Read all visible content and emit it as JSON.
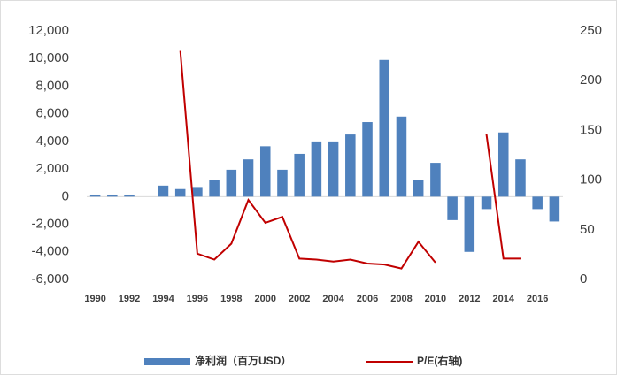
{
  "chart_data": {
    "type": "bar",
    "categories": [
      "1990",
      null,
      "1992",
      null,
      "1994",
      null,
      "1996",
      null,
      "1998",
      null,
      "2000",
      null,
      "2002",
      null,
      "2004",
      null,
      "2006",
      null,
      "2008",
      null,
      "2010",
      null,
      "2012",
      null,
      "2014",
      null,
      "2016",
      null
    ],
    "series": [
      {
        "name": "净利润（百万USD）",
        "type": "bar",
        "color": "#4f81bd",
        "values": [
          150,
          150,
          150,
          null,
          800,
          550,
          700,
          1200,
          1950,
          2700,
          3650,
          1950,
          3100,
          4000,
          4000,
          4500,
          5400,
          9900,
          5800,
          1200,
          2450,
          -1700,
          -4000,
          -900,
          4650,
          2700,
          -900,
          -1800
        ]
      },
      {
        "name": "P/E(右轴)",
        "type": "line",
        "axis": "y2",
        "color": "#c00000",
        "values": [
          null,
          null,
          null,
          null,
          null,
          230,
          26,
          20,
          36,
          80,
          57,
          63,
          21,
          20,
          18,
          20,
          16,
          15,
          11,
          38,
          17,
          null,
          null,
          146,
          21,
          21,
          null,
          null
        ]
      }
    ],
    "ylim": [
      -6000,
      12000
    ],
    "yticks": [
      {
        "value": -6000,
        "label": "-6,000"
      },
      {
        "value": -4000,
        "label": "-4,000"
      },
      {
        "value": -2000,
        "label": "-2,000"
      },
      0,
      {
        "value": 2000,
        "label": "2,000"
      },
      {
        "value": 4000,
        "label": "4,000"
      },
      {
        "value": 6000,
        "label": "6,000"
      },
      {
        "value": 8000,
        "label": "8,000"
      },
      {
        "value": 10000,
        "label": "10,000"
      },
      {
        "value": 12000,
        "label": "12,000"
      }
    ],
    "y2lim": [
      0,
      250
    ],
    "y2ticks": [
      0,
      50,
      100,
      150,
      200,
      250
    ],
    "grid": false,
    "legend": "bottom"
  }
}
